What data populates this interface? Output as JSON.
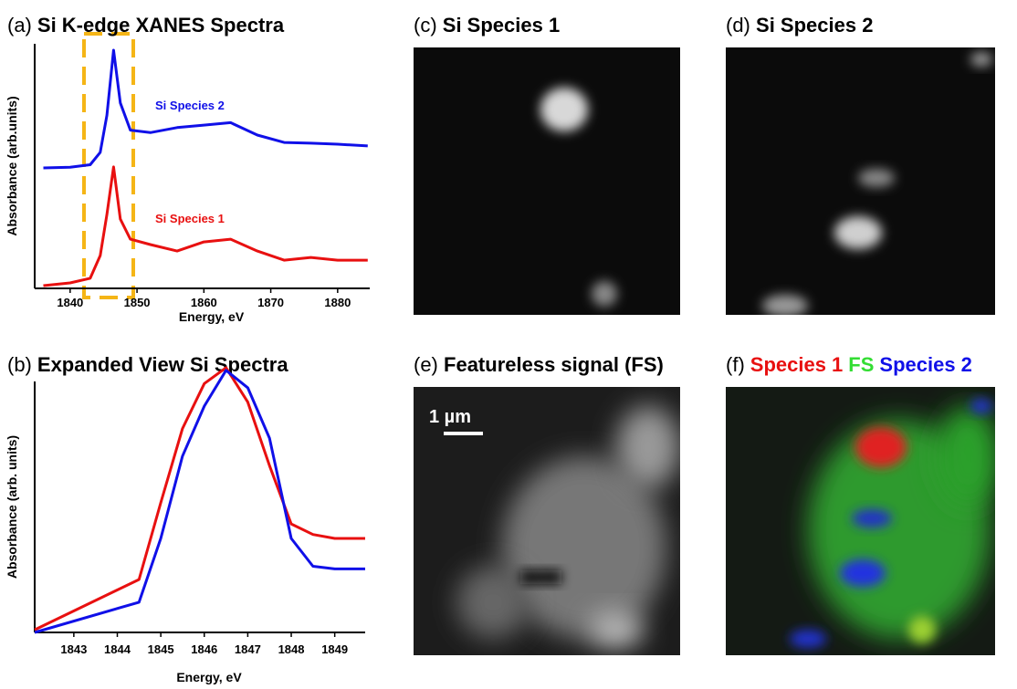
{
  "chart_data": [
    {
      "type": "line",
      "label": "(a)",
      "title": "Si K-edge XANES Spectra",
      "x_label": "Energy, eV",
      "y_label": "Absorbance (arb.units)",
      "x": [
        1836,
        1840,
        1843,
        1844.5,
        1845.5,
        1846.5,
        1847.5,
        1849,
        1852,
        1856,
        1860,
        1864,
        1868,
        1872,
        1876,
        1880,
        1884.5
      ],
      "series": [
        {
          "name": "Si Species 2",
          "color": "#1010e8",
          "values": [
            0.487,
            0.49,
            0.5,
            0.55,
            0.7,
            0.963,
            0.75,
            0.64,
            0.63,
            0.65,
            0.66,
            0.67,
            0.62,
            0.59,
            0.587,
            0.583,
            0.576
          ]
        },
        {
          "name": "Si Species 1",
          "color": "#e81010",
          "values": [
            0.011,
            0.022,
            0.041,
            0.133,
            0.299,
            0.491,
            0.28,
            0.199,
            0.177,
            0.151,
            0.188,
            0.199,
            0.151,
            0.114,
            0.125,
            0.114,
            0.114
          ]
        }
      ],
      "xlim": [
        1834.7,
        1884.8
      ],
      "xticks": [
        1840,
        1850,
        1860,
        1870,
        1880
      ],
      "ylim": [
        0,
        1
      ]
    },
    {
      "type": "line",
      "label": "(b)",
      "title": "Expanded View Si Spectra",
      "x_label": "Energy, eV",
      "y_label": "Absorbance (arb. units)",
      "x": [
        1842.1,
        1844.5,
        1845,
        1845.5,
        1846,
        1846.5,
        1847,
        1847.5,
        1848,
        1848.5,
        1849,
        1849.7
      ],
      "series": [
        {
          "color": "#e81010",
          "values": [
            0.01,
            0.2,
            0.49,
            0.77,
            0.94,
            1.0,
            0.87,
            0.63,
            0.41,
            0.37,
            0.355,
            0.355
          ]
        },
        {
          "color": "#1010e8",
          "values": [
            0.0,
            0.114,
            0.355,
            0.666,
            0.855,
            0.99,
            0.924,
            0.734,
            0.355,
            0.25,
            0.24,
            0.24
          ]
        }
      ],
      "xlim": [
        1842.1,
        1849.7
      ],
      "xticks": [
        1843,
        1844,
        1845,
        1846,
        1847,
        1848,
        1849
      ],
      "ylim": [
        0,
        1.01
      ]
    }
  ],
  "images": [
    {
      "label": "(c)",
      "title": "Si Species 1"
    },
    {
      "label": "(d)",
      "title": "Si Species 2"
    },
    {
      "label": "(e)",
      "title": "Featureless signal (FS)",
      "scale_bar": "1 µm"
    },
    {
      "label": "(f)",
      "title_parts": [
        {
          "text": "Species 1",
          "color": "#e81010"
        },
        {
          "text": "FS",
          "color": "#33dd33"
        },
        {
          "text": "Species 2",
          "color": "#1010e8"
        }
      ]
    }
  ]
}
